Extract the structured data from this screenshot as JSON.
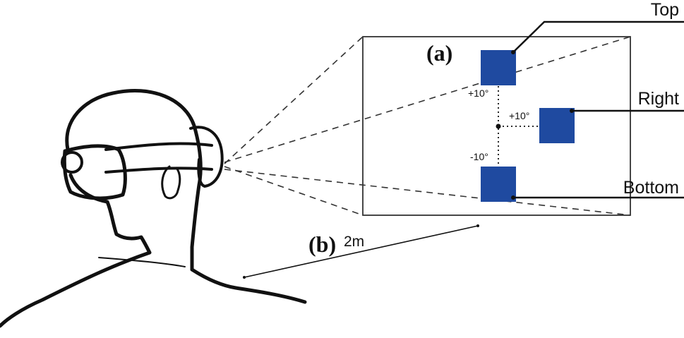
{
  "labels": {
    "panel_a": "(a)",
    "panel_b": "(b)",
    "distance": "2m",
    "top_target": "Top",
    "right_target": "Right",
    "bottom_target": "Bottom",
    "top_angle": "+10°",
    "right_angle": "+10°",
    "bottom_angle": "-10°"
  },
  "colors": {
    "target": "#1f4aa0",
    "line": "#111111"
  },
  "icons": {
    "person": "person-with-vr-headset-icon"
  }
}
